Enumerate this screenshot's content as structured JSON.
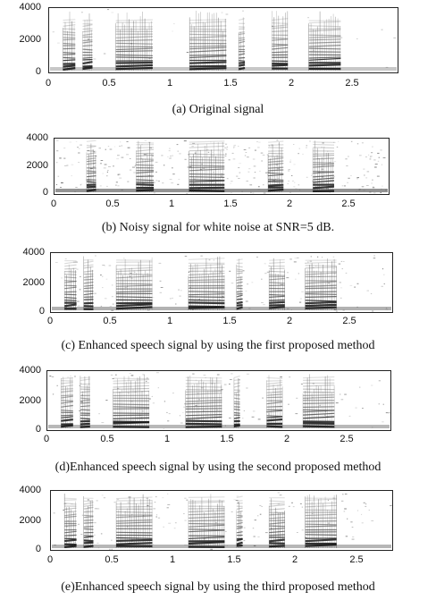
{
  "figure": {
    "y_ticks": [
      "4000",
      "2000",
      "0"
    ],
    "x_ticks": [
      "0",
      "0.5",
      "1",
      "1.5",
      "2",
      "2.5"
    ],
    "panels": [
      {
        "id": "a",
        "caption": "(a) Original signal",
        "noise": 0.05,
        "segments": [
          [
            0.12,
            0.22
          ],
          [
            0.28,
            0.36
          ],
          [
            0.55,
            0.85
          ],
          [
            1.15,
            1.45
          ],
          [
            1.55,
            1.6
          ],
          [
            1.82,
            1.95
          ],
          [
            2.12,
            2.38
          ]
        ]
      },
      {
        "id": "b",
        "caption": "(b) Noisy signal for white noise at SNR=5 dB.",
        "noise": 0.55,
        "segments": [
          [
            0.28,
            0.36
          ],
          [
            0.7,
            0.85
          ],
          [
            1.15,
            1.45
          ],
          [
            1.82,
            1.95
          ],
          [
            2.2,
            2.38
          ]
        ]
      },
      {
        "id": "c",
        "caption": "(c) Enhanced speech signal by using the first proposed method",
        "noise": 0.25,
        "segments": [
          [
            0.12,
            0.22
          ],
          [
            0.28,
            0.36
          ],
          [
            0.55,
            0.85
          ],
          [
            1.15,
            1.45
          ],
          [
            1.55,
            1.6
          ],
          [
            1.82,
            1.95
          ],
          [
            2.12,
            2.38
          ]
        ]
      },
      {
        "id": "d",
        "caption": "(d)Enhanced speech signal by using the second proposed method",
        "noise": 0.2,
        "segments": [
          [
            0.12,
            0.22
          ],
          [
            0.28,
            0.36
          ],
          [
            0.55,
            0.85
          ],
          [
            1.15,
            1.45
          ],
          [
            1.55,
            1.6
          ],
          [
            1.82,
            1.95
          ],
          [
            2.12,
            2.38
          ]
        ]
      },
      {
        "id": "e",
        "caption": "(e)Enhanced speech signal by using the third proposed method",
        "noise": 0.22,
        "segments": [
          [
            0.12,
            0.22
          ],
          [
            0.28,
            0.36
          ],
          [
            0.55,
            0.85
          ],
          [
            1.15,
            1.45
          ],
          [
            1.55,
            1.6
          ],
          [
            1.82,
            1.95
          ],
          [
            2.12,
            2.38
          ]
        ]
      }
    ]
  }
}
